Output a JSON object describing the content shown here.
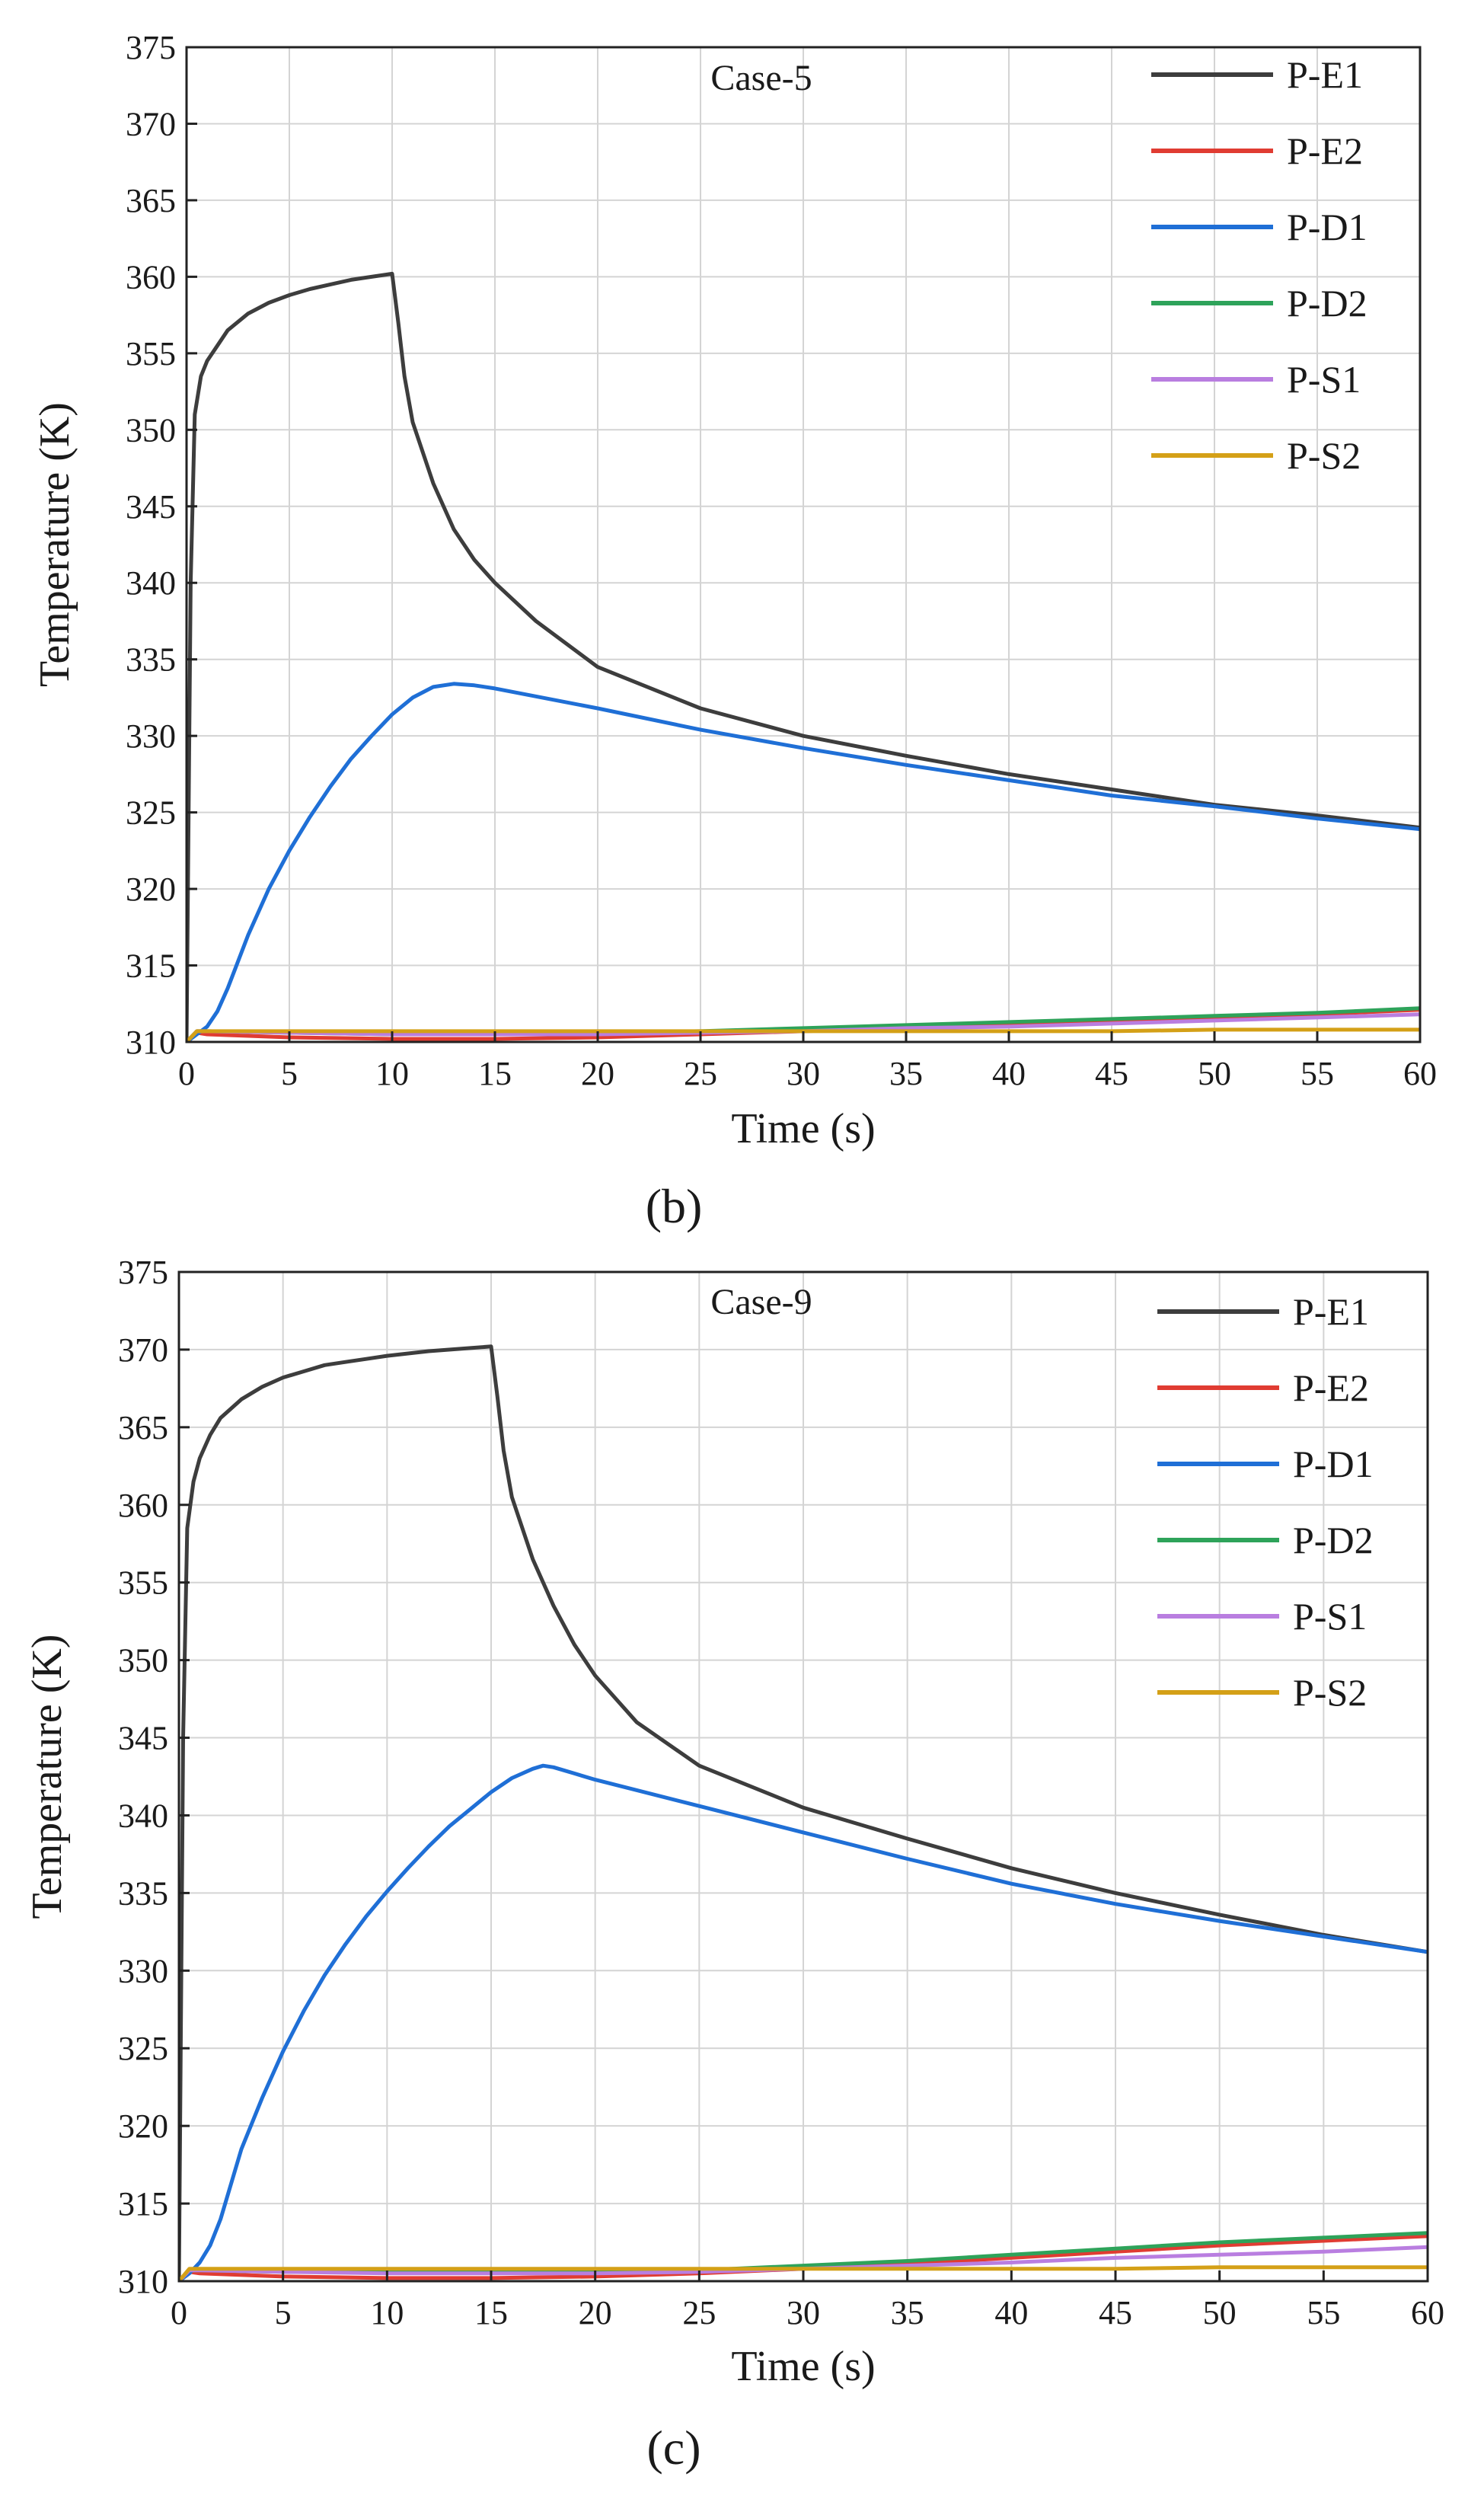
{
  "chart_data": [
    {
      "type": "line",
      "panel_label": "(b)",
      "annotation": "Case-5",
      "xlabel": "Time (s)",
      "ylabel": "Temperature (K)",
      "xlim": [
        0,
        60
      ],
      "ylim": [
        310,
        375
      ],
      "xticks": [
        0,
        5,
        10,
        15,
        20,
        25,
        30,
        35,
        40,
        45,
        50,
        55,
        60
      ],
      "xtick_labels": [
        "0",
        "5",
        "10",
        "15",
        "20",
        "25",
        "30",
        "35",
        "40",
        "45",
        "50",
        "55",
        "60"
      ],
      "yticks": [
        310,
        315,
        320,
        325,
        330,
        335,
        340,
        345,
        350,
        355,
        360,
        365,
        370,
        375
      ],
      "ytick_labels": [
        "310",
        "315",
        "320",
        "325",
        "330",
        "335",
        "340",
        "345",
        "350",
        "355",
        "360",
        "365",
        "370",
        "375"
      ],
      "grid": true,
      "legend_position": "top-right",
      "series": [
        {
          "name": "P-E1",
          "color": "#3d3d3d",
          "x": [
            0,
            0.2,
            0.4,
            0.7,
            1,
            1.5,
            2,
            3,
            4,
            5,
            6,
            7,
            8,
            9,
            10,
            10.3,
            10.6,
            11,
            12,
            13,
            14,
            15,
            17,
            20,
            25,
            30,
            35,
            40,
            45,
            50,
            55,
            60
          ],
          "y": [
            310,
            340,
            351,
            353.5,
            354.5,
            355.5,
            356.5,
            357.6,
            358.3,
            358.8,
            359.2,
            359.5,
            359.8,
            360,
            360.2,
            357,
            353.5,
            350.5,
            346.5,
            343.5,
            341.5,
            340,
            337.5,
            334.5,
            331.8,
            330,
            328.7,
            327.5,
            326.5,
            325.5,
            324.8,
            324
          ]
        },
        {
          "name": "P-E2",
          "color": "#e03c32",
          "x": [
            0,
            0.5,
            1,
            5,
            10,
            15,
            20,
            25,
            30,
            35,
            40,
            45,
            50,
            55,
            60
          ],
          "y": [
            310,
            310.6,
            310.5,
            310.3,
            310.2,
            310.2,
            310.3,
            310.5,
            310.7,
            310.9,
            311.1,
            311.3,
            311.6,
            311.8,
            312.1
          ]
        },
        {
          "name": "P-D1",
          "color": "#1f6fd6",
          "x": [
            0,
            0.5,
            1,
            1.5,
            2,
            3,
            4,
            5,
            6,
            7,
            8,
            9,
            10,
            11,
            12,
            13,
            14,
            15,
            20,
            25,
            30,
            35,
            40,
            45,
            50,
            55,
            60
          ],
          "y": [
            310,
            310.5,
            311,
            312,
            313.5,
            317,
            320,
            322.5,
            324.7,
            326.7,
            328.5,
            330,
            331.4,
            332.5,
            333.2,
            333.4,
            333.3,
            333.1,
            331.8,
            330.4,
            329.2,
            328.1,
            327.1,
            326.1,
            325.4,
            324.6,
            323.9
          ]
        },
        {
          "name": "P-D2",
          "color": "#2ea35a",
          "x": [
            0,
            0.5,
            1,
            5,
            10,
            15,
            20,
            25,
            30,
            35,
            40,
            45,
            50,
            55,
            60
          ],
          "y": [
            310,
            310.7,
            310.7,
            310.6,
            310.5,
            310.5,
            310.6,
            310.7,
            310.9,
            311.1,
            311.3,
            311.5,
            311.7,
            311.9,
            312.2
          ]
        },
        {
          "name": "P-S1",
          "color": "#b97ee0",
          "x": [
            0,
            0.5,
            1,
            5,
            10,
            15,
            20,
            25,
            30,
            35,
            40,
            45,
            50,
            55,
            60
          ],
          "y": [
            310,
            310.7,
            310.7,
            310.6,
            310.5,
            310.5,
            310.5,
            310.6,
            310.7,
            310.9,
            311,
            311.2,
            311.4,
            311.6,
            311.8
          ]
        },
        {
          "name": "P-S2",
          "color": "#d4a017",
          "x": [
            0,
            0.5,
            1,
            5,
            10,
            15,
            20,
            25,
            30,
            35,
            40,
            45,
            50,
            55,
            60
          ],
          "y": [
            310,
            310.7,
            310.7,
            310.7,
            310.7,
            310.7,
            310.7,
            310.7,
            310.7,
            310.7,
            310.7,
            310.7,
            310.8,
            310.8,
            310.8
          ]
        }
      ]
    },
    {
      "type": "line",
      "panel_label": "(c)",
      "annotation": "Case-9",
      "xlabel": "Time (s)",
      "ylabel": "Temperature (K)",
      "xlim": [
        0,
        60
      ],
      "ylim": [
        310,
        375
      ],
      "xticks": [
        0,
        5,
        10,
        15,
        20,
        25,
        30,
        35,
        40,
        45,
        50,
        55,
        60
      ],
      "xtick_labels": [
        "0",
        "5",
        "10",
        "15",
        "20",
        "25",
        "30",
        "35",
        "40",
        "45",
        "50",
        "55",
        "60"
      ],
      "yticks": [
        310,
        315,
        320,
        325,
        330,
        335,
        340,
        345,
        350,
        355,
        360,
        365,
        370,
        375
      ],
      "ytick_labels": [
        "310",
        "315",
        "320",
        "325",
        "330",
        "335",
        "340",
        "345",
        "350",
        "355",
        "360",
        "365",
        "370",
        "375"
      ],
      "grid": true,
      "legend_position": "top-right",
      "series": [
        {
          "name": "P-E1",
          "color": "#3d3d3d",
          "x": [
            0,
            0.2,
            0.4,
            0.7,
            1,
            1.5,
            2,
            3,
            4,
            5,
            6,
            7,
            8,
            9,
            10,
            12,
            14,
            15,
            15.3,
            15.6,
            16,
            17,
            18,
            19,
            20,
            22,
            25,
            30,
            35,
            40,
            45,
            50,
            55,
            60
          ],
          "y": [
            310,
            345,
            358.5,
            361.5,
            363,
            364.5,
            365.6,
            366.8,
            367.6,
            368.2,
            368.6,
            369,
            369.2,
            369.4,
            369.6,
            369.9,
            370.1,
            370.2,
            367,
            363.5,
            360.5,
            356.5,
            353.5,
            351,
            349,
            346,
            343.2,
            340.5,
            338.5,
            336.6,
            335,
            333.6,
            332.3,
            331.2
          ]
        },
        {
          "name": "P-E2",
          "color": "#e03c32",
          "x": [
            0,
            0.5,
            1,
            5,
            10,
            15,
            20,
            25,
            30,
            35,
            40,
            45,
            50,
            55,
            60
          ],
          "y": [
            310,
            310.6,
            310.5,
            310.3,
            310.2,
            310.2,
            310.3,
            310.5,
            310.8,
            311.1,
            311.5,
            311.9,
            312.3,
            312.6,
            312.9
          ]
        },
        {
          "name": "P-D1",
          "color": "#1f6fd6",
          "x": [
            0,
            0.5,
            1,
            1.5,
            2,
            3,
            4,
            5,
            6,
            7,
            8,
            9,
            10,
            11,
            12,
            13,
            14,
            15,
            16,
            17,
            17.5,
            18,
            19,
            20,
            25,
            30,
            35,
            40,
            45,
            50,
            55,
            60
          ],
          "y": [
            310,
            310.5,
            311.2,
            312.3,
            314,
            318.5,
            321.8,
            324.8,
            327.4,
            329.7,
            331.7,
            333.5,
            335.1,
            336.6,
            338,
            339.3,
            340.4,
            341.5,
            342.4,
            343,
            343.2,
            343.1,
            342.7,
            342.3,
            340.6,
            338.9,
            337.2,
            335.6,
            334.3,
            333.2,
            332.2,
            331.2
          ]
        },
        {
          "name": "P-D2",
          "color": "#2ea35a",
          "x": [
            0,
            0.5,
            1,
            5,
            10,
            15,
            20,
            25,
            30,
            35,
            40,
            45,
            50,
            55,
            60
          ],
          "y": [
            310,
            310.7,
            310.7,
            310.6,
            310.6,
            310.6,
            310.6,
            310.7,
            311,
            311.3,
            311.7,
            312.1,
            312.5,
            312.8,
            313.1
          ]
        },
        {
          "name": "P-S1",
          "color": "#b97ee0",
          "x": [
            0,
            0.5,
            1,
            5,
            10,
            15,
            20,
            25,
            30,
            35,
            40,
            45,
            50,
            55,
            60
          ],
          "y": [
            310,
            310.7,
            310.7,
            310.6,
            310.5,
            310.5,
            310.5,
            310.6,
            310.8,
            311,
            311.2,
            311.5,
            311.7,
            311.9,
            312.2
          ]
        },
        {
          "name": "P-S2",
          "color": "#d4a017",
          "x": [
            0,
            0.5,
            1,
            5,
            10,
            15,
            20,
            25,
            30,
            35,
            40,
            45,
            50,
            55,
            60
          ],
          "y": [
            310,
            310.8,
            310.8,
            310.8,
            310.8,
            310.8,
            310.8,
            310.8,
            310.8,
            310.8,
            310.8,
            310.8,
            310.9,
            310.9,
            310.9
          ]
        }
      ]
    }
  ]
}
